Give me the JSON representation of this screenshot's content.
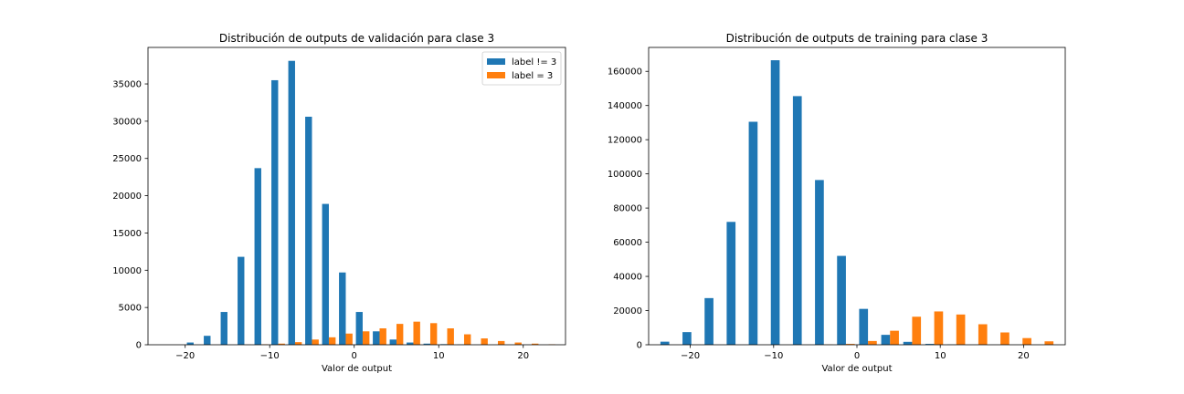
{
  "colors": {
    "series0": "#1f77b4",
    "series1": "#ff7f0e",
    "axis": "#000000",
    "background": "#ffffff"
  },
  "chart_data": [
    {
      "type": "bar",
      "title": "Distribución de outputs de validación para clase 3",
      "xlabel": "Valor de output",
      "ylabel": "",
      "xlim": [
        -24.4,
        25.0
      ],
      "ylim": [
        0,
        39900
      ],
      "bin_width": 2.0,
      "xticks": [
        -20,
        -10,
        0,
        10,
        20
      ],
      "xtick_labels": [
        "−20",
        "−10",
        "0",
        "10",
        "20"
      ],
      "yticks": [
        0,
        5000,
        10000,
        15000,
        20000,
        25000,
        30000,
        35000
      ],
      "ytick_labels": [
        "0",
        "5000",
        "10000",
        "15000",
        "20000",
        "25000",
        "30000",
        "35000"
      ],
      "grid": false,
      "legend": "top-right",
      "series": [
        {
          "name": "label != 3",
          "bins": [
            -22,
            -20,
            -18,
            -16,
            -14,
            -12,
            -10,
            -8,
            -6,
            -4,
            -2,
            0,
            2,
            4,
            6,
            8,
            10,
            12,
            14,
            16,
            18,
            20,
            22
          ],
          "values": [
            0,
            300,
            1200,
            4400,
            11800,
            23700,
            35500,
            38100,
            30600,
            18900,
            9700,
            4400,
            1800,
            700,
            300,
            150,
            80,
            30,
            10,
            5,
            0,
            0,
            0
          ]
        },
        {
          "name": "label = 3",
          "bins": [
            -22,
            -20,
            -18,
            -16,
            -14,
            -12,
            -10,
            -8,
            -6,
            -4,
            -2,
            0,
            2,
            4,
            6,
            8,
            10,
            12,
            14,
            16,
            18,
            20,
            22
          ],
          "values": [
            0,
            0,
            0,
            0,
            20,
            60,
            150,
            350,
            700,
            1000,
            1500,
            1800,
            2200,
            2800,
            3100,
            2900,
            2200,
            1400,
            850,
            500,
            300,
            150,
            60
          ]
        }
      ]
    },
    {
      "type": "bar",
      "title": "Distribución de outputs de training para clase 3",
      "xlabel": "Valor de output",
      "ylabel": "",
      "xlim": [
        -25.0,
        25.0
      ],
      "ylim": [
        0,
        174000
      ],
      "bin_width": 2.65,
      "xticks": [
        -20,
        -10,
        0,
        10,
        20
      ],
      "xtick_labels": [
        "−20",
        "−10",
        "0",
        "10",
        "20"
      ],
      "yticks": [
        0,
        20000,
        40000,
        60000,
        80000,
        100000,
        120000,
        140000,
        160000
      ],
      "ytick_labels": [
        "0",
        "20000",
        "40000",
        "60000",
        "80000",
        "100000",
        "120000",
        "140000",
        "160000"
      ],
      "grid": false,
      "legend": "none",
      "series": [
        {
          "name": "label != 3",
          "bins": [
            -23.85,
            -21.2,
            -18.55,
            -15.9,
            -13.25,
            -10.6,
            -7.95,
            -5.3,
            -2.65,
            0.0,
            2.65,
            5.3,
            7.95,
            10.6,
            13.25,
            15.9,
            18.55,
            21.2
          ],
          "values": [
            1800,
            7400,
            27300,
            71900,
            130500,
            166500,
            145500,
            96400,
            52000,
            21000,
            5800,
            1700,
            500,
            150,
            50,
            20,
            5,
            0
          ]
        },
        {
          "name": "label = 3",
          "bins": [
            -23.85,
            -21.2,
            -18.55,
            -15.9,
            -13.25,
            -10.6,
            -7.95,
            -5.3,
            -2.65,
            0.0,
            2.65,
            5.3,
            7.95,
            10.6,
            13.25,
            15.9,
            18.55,
            21.2
          ],
          "values": [
            0,
            0,
            0,
            0,
            0,
            0,
            0,
            150,
            500,
            2200,
            8200,
            16400,
            19500,
            17700,
            12000,
            7200,
            3900,
            2000
          ]
        }
      ]
    }
  ]
}
